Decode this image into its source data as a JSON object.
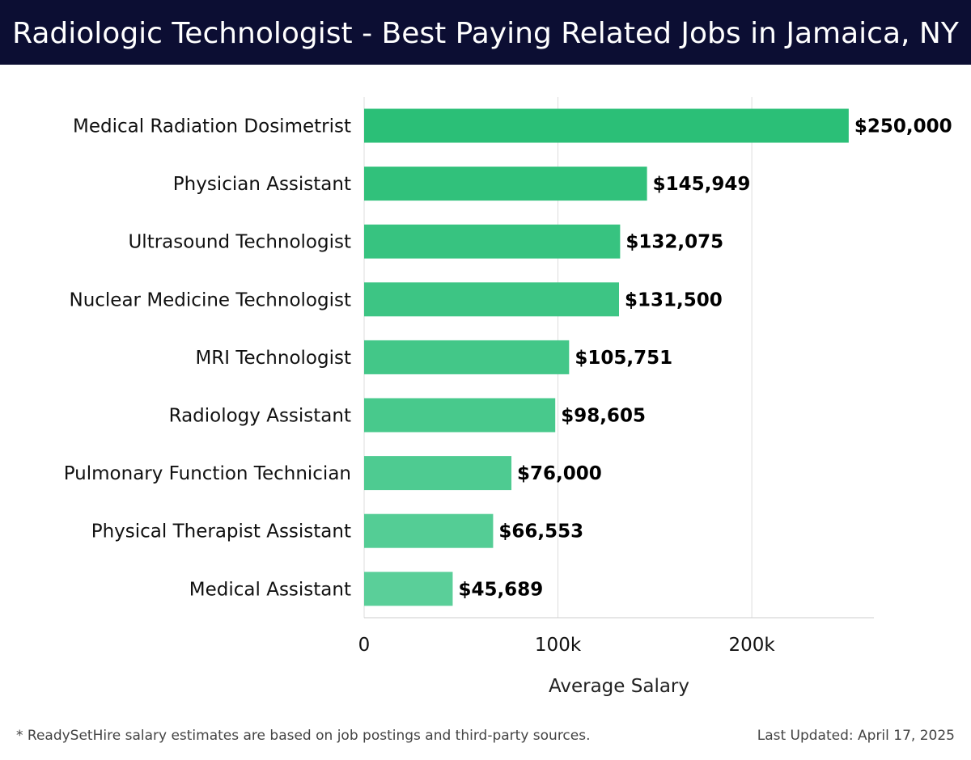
{
  "header": {
    "title": "Radiologic Technologist - Best Paying Related Jobs in Jamaica, NY"
  },
  "footer": {
    "note": "* ReadySetHire salary estimates are based on job postings and third-party sources.",
    "updated": "Last Updated: April 17, 2025"
  },
  "colors": {
    "header_bg": "#0c0e33",
    "bar_top": "#2bbf77",
    "bar_bottom": "#5acf99",
    "grid": "#dddddd"
  },
  "chart_data": {
    "type": "bar",
    "orientation": "horizontal",
    "categories": [
      "Medical Radiation Dosimetrist",
      "Physician Assistant",
      "Ultrasound Technologist",
      "Nuclear Medicine Technologist",
      "MRI Technologist",
      "Radiology Assistant",
      "Pulmonary Function Technician",
      "Physical Therapist Assistant",
      "Medical Assistant"
    ],
    "values": [
      250000,
      145949,
      132075,
      131500,
      105751,
      98605,
      76000,
      66553,
      45689
    ],
    "data_labels": [
      "$250,000",
      "$145,949",
      "$132,075",
      "$131,500",
      "$105,751",
      "$98,605",
      "$76,000",
      "$66,553",
      "$45,689"
    ],
    "xlabel": "Average Salary",
    "ylabel": "",
    "xlim": [
      0,
      263000
    ],
    "xticks": [
      0,
      100000,
      200000
    ],
    "xtick_labels": [
      "0",
      "100k",
      "200k"
    ],
    "grid": "vertical"
  }
}
